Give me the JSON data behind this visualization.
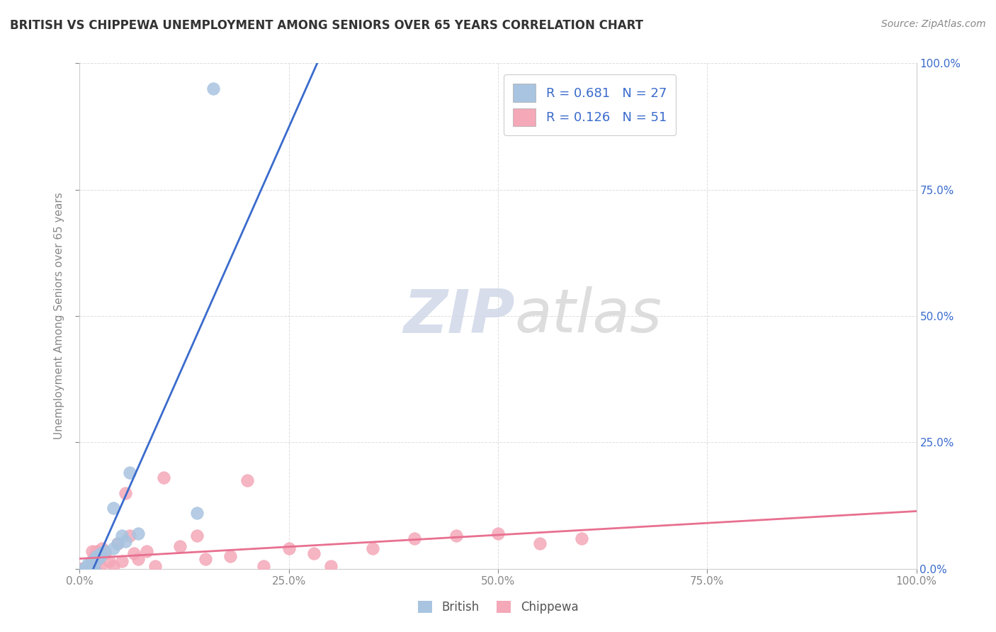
{
  "title": "BRITISH VS CHIPPEWA UNEMPLOYMENT AMONG SENIORS OVER 65 YEARS CORRELATION CHART",
  "source_text": "Source: ZipAtlas.com",
  "ylabel": "Unemployment Among Seniors over 65 years",
  "watermark_zip": "ZIP",
  "watermark_atlas": "atlas",
  "british_R": "0.681",
  "british_N": "27",
  "chippewa_R": "0.126",
  "chippewa_N": "51",
  "british_color": "#a8c4e0",
  "chippewa_color": "#f4a8b8",
  "line_british_color": "#3a6bcc",
  "line_chippewa_color": "#e87090",
  "legend_text_color": "#3a6bcc",
  "right_axis_color": "#3a6bcc",
  "tick_color": "#888888",
  "title_color": "#333333",
  "source_color": "#888888",
  "british_x": [
    0.005,
    0.007,
    0.007,
    0.008,
    0.01,
    0.01,
    0.012,
    0.012,
    0.015,
    0.015,
    0.016,
    0.017,
    0.018,
    0.02,
    0.022,
    0.025,
    0.025,
    0.03,
    0.04,
    0.04,
    0.045,
    0.05,
    0.055,
    0.06,
    0.07,
    0.14,
    0.16
  ],
  "british_y": [
    0.0,
    0.0,
    0.0,
    0.0,
    0.01,
    0.005,
    0.005,
    0.0,
    0.005,
    0.015,
    0.01,
    0.0,
    0.02,
    0.025,
    0.02,
    0.03,
    0.025,
    0.035,
    0.12,
    0.04,
    0.05,
    0.065,
    0.055,
    0.19,
    0.07,
    0.11,
    0.95
  ],
  "chippewa_x": [
    0.001,
    0.002,
    0.003,
    0.005,
    0.005,
    0.006,
    0.007,
    0.008,
    0.009,
    0.01,
    0.01,
    0.011,
    0.012,
    0.013,
    0.014,
    0.015,
    0.016,
    0.017,
    0.018,
    0.02,
    0.02,
    0.022,
    0.025,
    0.027,
    0.03,
    0.035,
    0.04,
    0.045,
    0.05,
    0.055,
    0.06,
    0.065,
    0.07,
    0.08,
    0.09,
    0.1,
    0.12,
    0.14,
    0.15,
    0.18,
    0.2,
    0.22,
    0.25,
    0.28,
    0.3,
    0.35,
    0.4,
    0.45,
    0.5,
    0.55,
    0.6
  ],
  "chippewa_y": [
    0.0,
    0.0,
    0.0,
    0.0,
    0.0,
    0.0,
    0.0,
    0.0,
    0.0,
    0.0,
    0.0,
    0.0,
    0.0,
    0.0,
    0.015,
    0.035,
    0.015,
    0.025,
    0.0,
    0.015,
    0.035,
    0.02,
    0.005,
    0.04,
    0.03,
    0.015,
    0.005,
    0.05,
    0.015,
    0.15,
    0.065,
    0.03,
    0.02,
    0.035,
    0.005,
    0.18,
    0.045,
    0.065,
    0.02,
    0.025,
    0.175,
    0.005,
    0.04,
    0.03,
    0.005,
    0.04,
    0.06,
    0.065,
    0.07,
    0.05,
    0.06
  ],
  "xlim": [
    0.0,
    1.0
  ],
  "ylim": [
    0.0,
    1.0
  ],
  "xtick_vals": [
    0.0,
    0.25,
    0.5,
    0.75,
    1.0
  ],
  "ytick_vals": [
    0.0,
    0.25,
    0.5,
    0.75,
    1.0
  ],
  "grid_color": "#dddddd"
}
